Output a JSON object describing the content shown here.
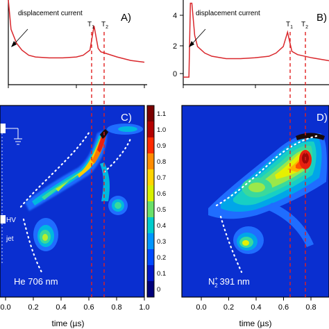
{
  "chart_data": [
    {
      "type": "line",
      "panel": "A)",
      "annotation": "displacement current",
      "markers": [
        "T",
        "T"
      ],
      "marker_subscripts": [
        "1",
        "2"
      ],
      "x": [
        0.0,
        0.02,
        0.06,
        0.1,
        0.15,
        0.2,
        0.3,
        0.4,
        0.5,
        0.55,
        0.6,
        0.63,
        0.66,
        0.68,
        0.7,
        0.8,
        0.9,
        1.0
      ],
      "y": [
        4.5,
        2.8,
        2.0,
        1.6,
        1.3,
        1.2,
        1.15,
        1.15,
        1.2,
        1.3,
        1.6,
        3.0,
        1.7,
        1.5,
        1.45,
        1.2,
        1.0,
        0.9
      ],
      "ylim": [
        0,
        4.5
      ],
      "color": "#d9262b"
    },
    {
      "type": "line",
      "panel": "B)",
      "annotation": "displacement current",
      "markers": [
        "T",
        "T"
      ],
      "marker_subscripts": [
        "1",
        "2"
      ],
      "yticks": [
        "0",
        "2",
        "4"
      ],
      "x": [
        -0.1,
        -0.06,
        -0.05,
        -0.04,
        -0.02,
        0.0,
        0.05,
        0.1,
        0.2,
        0.3,
        0.4,
        0.5,
        0.55,
        0.6,
        0.63,
        0.66,
        0.7,
        0.8,
        0.9,
        1.0
      ],
      "y": [
        0.0,
        0.0,
        4.6,
        4.6,
        2.6,
        1.9,
        1.5,
        1.3,
        1.15,
        1.15,
        1.2,
        1.3,
        1.5,
        1.9,
        2.8,
        1.6,
        1.4,
        1.2,
        1.05,
        0.9
      ],
      "ylim": [
        -0.3,
        4.8
      ],
      "color": "#d9262b"
    },
    {
      "type": "heatmap",
      "panel": "C)",
      "species": "He 706 nm",
      "xlabel": "time (µs)",
      "xticks": [
        "0.0",
        "0.2",
        "0.4",
        "0.6",
        "0.8",
        "1.0"
      ],
      "xtick_values": [
        0.0,
        0.2,
        0.4,
        0.6,
        0.8,
        1.0
      ],
      "colorbar_ticks": [
        "1.1",
        "1.0",
        "0.9",
        "0.8",
        "0.7",
        "0.6",
        "0.5",
        "0.4",
        "0.3",
        "0.2",
        "0.1",
        "0"
      ],
      "colorbar_values": [
        1.1,
        1.0,
        0.9,
        0.8,
        0.7,
        0.6,
        0.5,
        0.4,
        0.3,
        0.2,
        0.1,
        0.0
      ],
      "colorbar_colors": [
        "#7a0000",
        "#b30000",
        "#ff2a00",
        "#ff8c00",
        "#ffd400",
        "#d7f000",
        "#69e069",
        "#00cccc",
        "#0096ff",
        "#0048ff",
        "#0016c8",
        "#00007a"
      ],
      "setup_labels": [
        "HV",
        "jet"
      ],
      "ridge": [
        [
          0.15,
          0.32,
          0.3
        ],
        [
          0.3,
          0.42,
          0.4
        ],
        [
          0.45,
          0.52,
          0.45
        ],
        [
          0.55,
          0.6,
          0.55
        ],
        [
          0.62,
          0.7,
          0.7
        ],
        [
          0.66,
          0.8,
          0.9
        ],
        [
          0.69,
          0.93,
          1.05
        ]
      ],
      "blobs": [
        {
          "x": 0.27,
          "y": 0.15,
          "peak": 0.7
        },
        {
          "x": 0.78,
          "y": 0.45,
          "peak": 0.6
        },
        {
          "x": 0.82,
          "y": 0.97,
          "peak": 0.5
        }
      ]
    },
    {
      "type": "heatmap",
      "panel": "D)",
      "species": "N",
      "species_subscript": "2",
      "species_superscript": "+",
      "species_suffix": "391 nm",
      "xlabel": "time (µs)",
      "xticks": [
        "0.0",
        "0.2",
        "0.4",
        "0.6",
        "0.8"
      ],
      "xtick_values": [
        0.0,
        0.2,
        0.4,
        0.6,
        0.8
      ],
      "ridge": [
        [
          0.2,
          0.4,
          0.2
        ],
        [
          0.4,
          0.6,
          0.45
        ],
        [
          0.55,
          0.7,
          0.5
        ],
        [
          0.7,
          0.8,
          0.9
        ],
        [
          0.72,
          0.92,
          1.0
        ]
      ],
      "blobs": [
        {
          "x": 0.3,
          "y": 0.15,
          "peak": 0.6
        },
        {
          "x": 0.42,
          "y": 0.62,
          "peak": 0.6
        }
      ]
    }
  ]
}
